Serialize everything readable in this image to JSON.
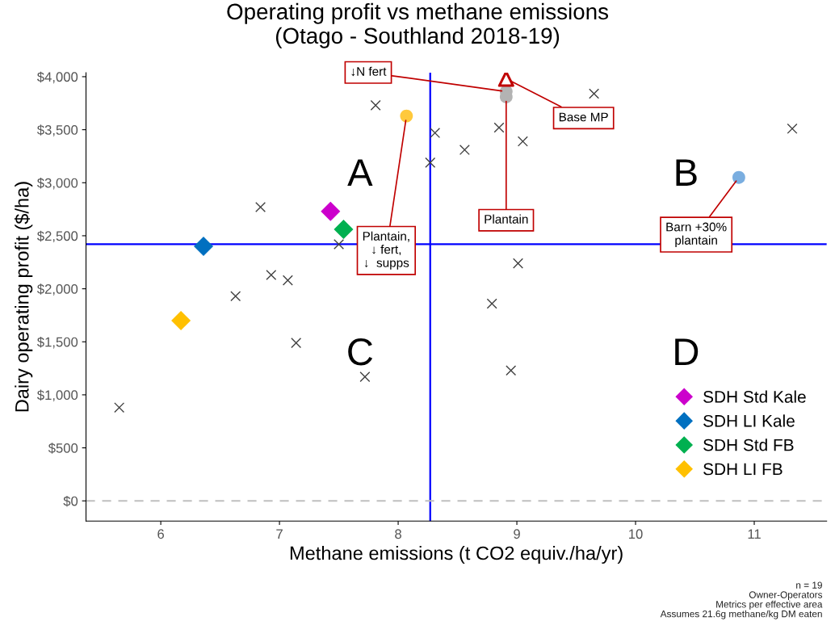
{
  "chart_data": {
    "type": "scatter",
    "title": "Operating profit vs methane emissions\n(Otago - Southland 2018-19)",
    "xlabel": "Methane emissions (t CO2 equiv./ha/yr)",
    "ylabel": "Dairy operating profit ($/ha)",
    "xlim": [
      5.37,
      11.61
    ],
    "ylim": [
      -190,
      4038
    ],
    "xticks": [
      6,
      7,
      8,
      9,
      10,
      11
    ],
    "yticks": [
      {
        "value": 0,
        "label": "$0"
      },
      {
        "value": 500,
        "label": "$500"
      },
      {
        "value": 1000,
        "label": "$1,000"
      },
      {
        "value": 1500,
        "label": "$1,500"
      },
      {
        "value": 2000,
        "label": "$2,000"
      },
      {
        "value": 2500,
        "label": "$2,500"
      },
      {
        "value": 3000,
        "label": "$3,000"
      },
      {
        "value": 3500,
        "label": "$3,500"
      },
      {
        "value": 4000,
        "label": "$4,000"
      }
    ],
    "grid": false,
    "legend": "bottom right",
    "series": [
      {
        "marker": "cross",
        "color": "#404040",
        "x": [
          5.65,
          6.63,
          6.84,
          6.93,
          7.07,
          7.14,
          7.5,
          7.72,
          7.81,
          8.27,
          8.31,
          8.56,
          8.79,
          8.85,
          8.95,
          9.01,
          9.05,
          9.65,
          11.32
        ],
        "values": [
          880,
          1930,
          2770,
          2130,
          2080,
          1490,
          2420,
          1170,
          3730,
          3190,
          3470,
          3310,
          1860,
          3520,
          1230,
          2240,
          3390,
          3840,
          3510
        ]
      },
      {
        "marker": "diamond",
        "name": "SDH Std Kale",
        "color": "#cc00cc",
        "x": [
          7.43
        ],
        "values": [
          2730
        ]
      },
      {
        "marker": "diamond",
        "name": "SDH LI Kale",
        "color": "#0070c0",
        "x": [
          6.36
        ],
        "values": [
          2400
        ]
      },
      {
        "marker": "diamond",
        "name": "SDH Std FB",
        "color": "#00b050",
        "x": [
          7.54
        ],
        "values": [
          2560
        ]
      },
      {
        "marker": "diamond",
        "name": "SDH LI FB",
        "color": "#ffc000",
        "x": [
          6.17
        ],
        "values": [
          1700
        ]
      },
      {
        "marker": "circle",
        "color": "#ffc93c",
        "x": [
          8.07
        ],
        "values": [
          3630
        ]
      },
      {
        "marker": "circle",
        "color": "#b3b3b3",
        "x": [
          8.91,
          8.91
        ],
        "values": [
          3860,
          3810
        ]
      },
      {
        "marker": "triangle",
        "color": "#c00000",
        "x": [
          8.91
        ],
        "values": [
          3980
        ]
      },
      {
        "marker": "circle",
        "color": "#7aaee0",
        "x": [
          10.87
        ],
        "values": [
          3050
        ]
      }
    ],
    "ref_lines": [
      {
        "axis": "x",
        "value": 8.27,
        "color": "#0000ff",
        "line_style": "solid"
      },
      {
        "axis": "y",
        "value": 2420,
        "color": "#0000ff",
        "line_style": "solid"
      },
      {
        "axis": "y",
        "value": 0,
        "color": "#bfbfbf",
        "line_style": "dashed"
      }
    ],
    "annotations": [
      {
        "text": "↓N fert",
        "x": 8.91,
        "y": 3860
      },
      {
        "text": "Base MP",
        "x": 8.91,
        "y": 3980
      },
      {
        "text": "Plantain",
        "x": 8.91,
        "y": 3810
      },
      {
        "text": "Plantain,\n↓ fert,\n↓  supps",
        "x": 8.07,
        "y": 3630
      },
      {
        "text": "Barn +30%\nplantain",
        "x": 10.87,
        "y": 3050
      },
      "A",
      "B",
      "C",
      "D",
      "n = 19\nOwner-Operators\nMetrics per effective area\nAssumes 21.6g methane/kg DM eaten"
    ]
  }
}
